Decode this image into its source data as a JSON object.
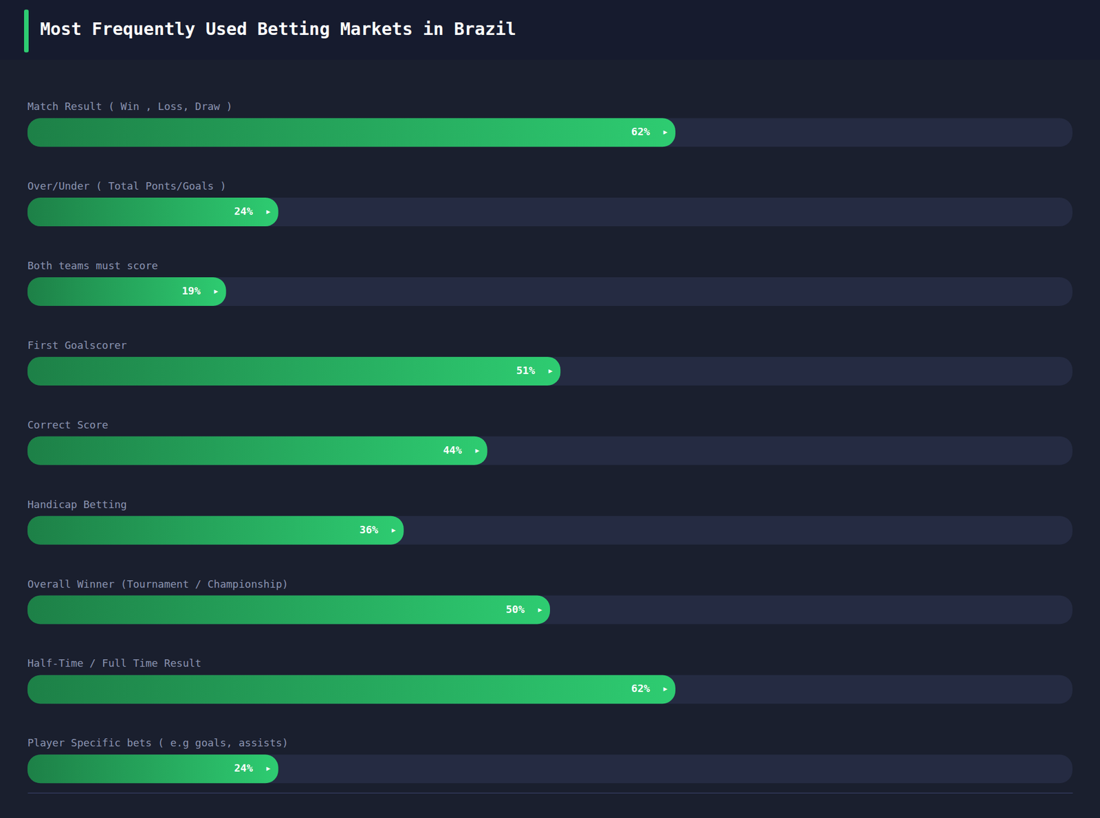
{
  "chart_data": {
    "type": "bar",
    "orientation": "horizontal",
    "title": "Most Frequently Used Betting Markets in Brazil",
    "categories": [
      "Match Result ( Win , Loss, Draw )",
      "Over/Under ( Total Ponts/Goals )",
      "Both teams must score",
      "First Goalscorer",
      "Correct Score",
      "Handicap Betting",
      "Overall Winner (Tournament / Championship)",
      "Half-Time / Full Time Result",
      "Player Specific bets ( e.g goals, assists)"
    ],
    "values": [
      62,
      24,
      19,
      51,
      44,
      36,
      50,
      62,
      24
    ],
    "value_labels": [
      "62%  ▸",
      "24%  ▸",
      "19%  ▸",
      "51%  ▸",
      "44%  ▸",
      "36%  ▸",
      "50%  ▸",
      "62%  ▸",
      "24%  ▸"
    ],
    "color": "#2ecc71",
    "xlim": [
      0,
      100
    ],
    "data_labels": true,
    "tick_labels": false,
    "grid": false
  }
}
